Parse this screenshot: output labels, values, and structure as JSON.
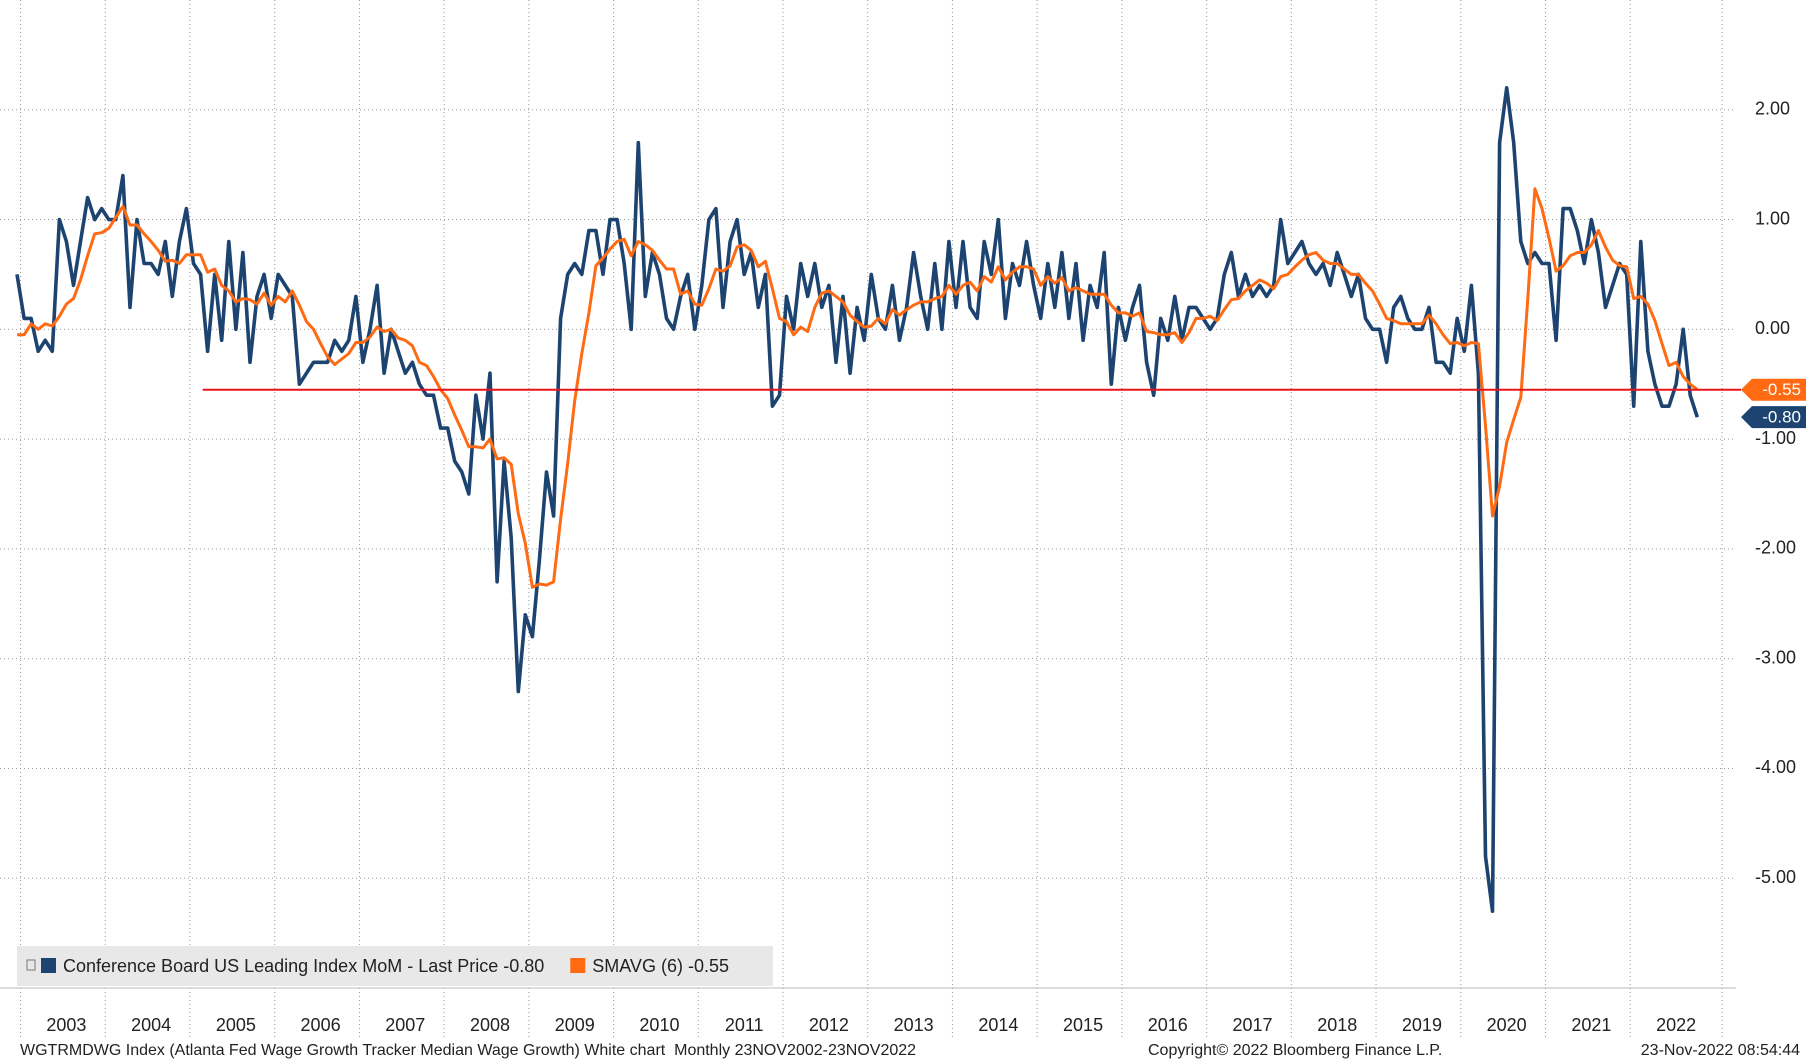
{
  "chart_data": {
    "type": "line",
    "categories": [
      null,
      null,
      null,
      null,
      null,
      null,
      null,
      "2003",
      null,
      null,
      null,
      null,
      null,
      null,
      null,
      null,
      null,
      null,
      null,
      "2004",
      null,
      null,
      null,
      null,
      null,
      null,
      null,
      null,
      null,
      null,
      null,
      "2005",
      null,
      null,
      null,
      null,
      null,
      null,
      null,
      null,
      null,
      null,
      null,
      "2006",
      null,
      null,
      null,
      null,
      null,
      null,
      null,
      null,
      null,
      null,
      null,
      "2007",
      null,
      null,
      null,
      null,
      null,
      null,
      null,
      null,
      null,
      null,
      null,
      "2008",
      null,
      null,
      null,
      null,
      null,
      null,
      null,
      null,
      null,
      null,
      null,
      "2009",
      null,
      null,
      null,
      null,
      null,
      null,
      null,
      null,
      null,
      null,
      null,
      "2010",
      null,
      null,
      null,
      null,
      null,
      null,
      null,
      null,
      null,
      null,
      null,
      "2011",
      null,
      null,
      null,
      null,
      null,
      null,
      null,
      null,
      null,
      null,
      null,
      "2012",
      null,
      null,
      null,
      null,
      null,
      null,
      null,
      null,
      null,
      null,
      null,
      "2013",
      null,
      null,
      null,
      null,
      null,
      null,
      null,
      null,
      null,
      null,
      null,
      "2014",
      null,
      null,
      null,
      null,
      null,
      null,
      null,
      null,
      null,
      null,
      null,
      "2015",
      null,
      null,
      null,
      null,
      null,
      null,
      null,
      null,
      null,
      null,
      null,
      "2016",
      null,
      null,
      null,
      null,
      null,
      null,
      null,
      null,
      null,
      null,
      null,
      "2017",
      null,
      null,
      null,
      null,
      null,
      null,
      null,
      null,
      null,
      null,
      null,
      "2018",
      null,
      null,
      null,
      null,
      null,
      null,
      null,
      null,
      null,
      null,
      null,
      "2019",
      null,
      null,
      null,
      null,
      null,
      null,
      null,
      null,
      null,
      null,
      null,
      "2020",
      null,
      null,
      null,
      null,
      null,
      null,
      null,
      null,
      null,
      null,
      null,
      "2021",
      null,
      null,
      null,
      null,
      null,
      null,
      null,
      null,
      null,
      null,
      null,
      "2022",
      null,
      null,
      null
    ],
    "series": [
      {
        "name": "Conference Board US Leading Index MoM - Last Price -0.80",
        "color": "#1d4470",
        "last_label": "-0.80",
        "values": [
          0.5,
          0.1,
          0.1,
          -0.2,
          -0.1,
          -0.2,
          1.0,
          0.8,
          0.4,
          0.8,
          1.2,
          1.0,
          1.1,
          1.0,
          1.0,
          1.4,
          0.2,
          1.0,
          0.6,
          0.6,
          0.5,
          0.8,
          0.3,
          0.8,
          1.1,
          0.6,
          0.5,
          -0.2,
          0.5,
          -0.1,
          0.8,
          0.0,
          0.7,
          -0.3,
          0.3,
          0.5,
          0.1,
          0.5,
          0.4,
          0.3,
          -0.5,
          -0.4,
          -0.3,
          -0.3,
          -0.3,
          -0.1,
          -0.2,
          -0.1,
          0.3,
          -0.3,
          0.0,
          0.4,
          -0.4,
          0.0,
          -0.2,
          -0.4,
          -0.3,
          -0.5,
          -0.6,
          -0.6,
          -0.9,
          -0.9,
          -1.2,
          -1.3,
          -1.5,
          -0.6,
          -1.0,
          -0.4,
          -2.3,
          -1.2,
          -1.9,
          -3.3,
          -2.6,
          -2.8,
          -2.1,
          -1.3,
          -1.7,
          0.1,
          0.5,
          0.6,
          0.5,
          0.9,
          0.9,
          0.5,
          1.0,
          1.0,
          0.6,
          0.0,
          1.7,
          0.3,
          0.7,
          0.5,
          0.1,
          0.0,
          0.3,
          0.5,
          0.0,
          0.4,
          1.0,
          1.1,
          0.2,
          0.8,
          1.0,
          0.5,
          0.7,
          0.2,
          0.5,
          -0.7,
          -0.6,
          0.3,
          0.0,
          0.6,
          0.3,
          0.6,
          0.2,
          0.4,
          -0.3,
          0.3,
          -0.4,
          0.2,
          -0.1,
          0.5,
          0.1,
          0.0,
          0.4,
          -0.1,
          0.2,
          0.7,
          0.3,
          0.0,
          0.6,
          0.0,
          0.8,
          0.2,
          0.8,
          0.2,
          0.1,
          0.8,
          0.5,
          1.0,
          0.1,
          0.6,
          0.4,
          0.8,
          0.4,
          0.1,
          0.6,
          0.2,
          0.7,
          0.1,
          0.6,
          -0.1,
          0.4,
          0.2,
          0.7,
          -0.5,
          0.2,
          -0.1,
          0.2,
          0.4,
          -0.3,
          -0.6,
          0.1,
          -0.1,
          0.3,
          -0.1,
          0.2,
          0.2,
          0.1,
          0.0,
          0.1,
          0.5,
          0.7,
          0.3,
          0.5,
          0.3,
          0.4,
          0.3,
          0.4,
          1.0,
          0.6,
          0.7,
          0.8,
          0.6,
          0.5,
          0.6,
          0.4,
          0.7,
          0.5,
          0.3,
          0.5,
          0.1,
          0.0,
          0.0,
          -0.3,
          0.2,
          0.3,
          0.1,
          0.0,
          0.0,
          0.2,
          -0.3,
          -0.3,
          -0.4,
          0.1,
          -0.2,
          0.4,
          -0.4,
          -4.8,
          -5.3,
          1.7,
          2.2,
          1.7,
          0.8,
          0.6,
          0.7,
          0.6,
          0.6,
          -0.1,
          1.1,
          1.1,
          0.9,
          0.6,
          1.0,
          0.7,
          0.2,
          0.4,
          0.6,
          0.5,
          -0.7,
          0.8,
          -0.2,
          -0.5,
          -0.7,
          -0.7,
          -0.5,
          0.0,
          -0.6,
          -0.8
        ]
      },
      {
        "name": "SMAVG (6) -0.55",
        "color": "#ff6a13",
        "last_label": "-0.55",
        "values": [
          -0.05,
          -0.05,
          0.05,
          0.0,
          0.05,
          0.03,
          0.12,
          0.23,
          0.28,
          0.45,
          0.67,
          0.87,
          0.88,
          0.92,
          1.02,
          1.12,
          0.95,
          0.95,
          0.87,
          0.8,
          0.72,
          0.62,
          0.63,
          0.6,
          0.68,
          0.68,
          0.68,
          0.52,
          0.55,
          0.4,
          0.35,
          0.25,
          0.28,
          0.27,
          0.23,
          0.33,
          0.22,
          0.3,
          0.25,
          0.35,
          0.22,
          0.07,
          0.0,
          -0.13,
          -0.25,
          -0.32,
          -0.27,
          -0.22,
          -0.12,
          -0.12,
          -0.07,
          0.02,
          -0.02,
          0.0,
          -0.08,
          -0.1,
          -0.15,
          -0.3,
          -0.33,
          -0.43,
          -0.55,
          -0.63,
          -0.78,
          -0.92,
          -1.07,
          -1.07,
          -1.08,
          -1.0,
          -1.18,
          -1.17,
          -1.23,
          -1.68,
          -1.95,
          -2.35,
          -2.32,
          -2.33,
          -2.3,
          -1.73,
          -1.22,
          -0.65,
          -0.22,
          0.15,
          0.58,
          0.65,
          0.73,
          0.8,
          0.82,
          0.67,
          0.8,
          0.77,
          0.72,
          0.63,
          0.55,
          0.55,
          0.32,
          0.35,
          0.23,
          0.22,
          0.37,
          0.55,
          0.53,
          0.58,
          0.75,
          0.77,
          0.72,
          0.57,
          0.62,
          0.37,
          0.1,
          0.07,
          -0.05,
          0.02,
          -0.02,
          0.2,
          0.33,
          0.35,
          0.3,
          0.25,
          0.13,
          0.07,
          0.02,
          0.03,
          0.1,
          0.05,
          0.18,
          0.13,
          0.18,
          0.22,
          0.25,
          0.25,
          0.28,
          0.3,
          0.4,
          0.32,
          0.4,
          0.43,
          0.35,
          0.48,
          0.43,
          0.57,
          0.45,
          0.52,
          0.57,
          0.57,
          0.55,
          0.4,
          0.48,
          0.42,
          0.47,
          0.35,
          0.38,
          0.35,
          0.32,
          0.32,
          0.32,
          0.22,
          0.15,
          0.15,
          0.12,
          0.15,
          -0.02,
          -0.03,
          -0.05,
          -0.05,
          -0.03,
          -0.12,
          -0.03,
          0.1,
          0.1,
          0.12,
          0.08,
          0.18,
          0.27,
          0.28,
          0.35,
          0.4,
          0.45,
          0.42,
          0.37,
          0.48,
          0.5,
          0.57,
          0.63,
          0.68,
          0.7,
          0.63,
          0.6,
          0.6,
          0.55,
          0.5,
          0.5,
          0.42,
          0.35,
          0.23,
          0.1,
          0.08,
          0.05,
          0.05,
          0.05,
          0.05,
          0.13,
          0.05,
          -0.05,
          -0.13,
          -0.12,
          -0.15,
          -0.12,
          -0.13,
          -0.88,
          -1.7,
          -1.43,
          -1.03,
          -0.82,
          -0.62,
          0.28,
          1.28,
          1.1,
          0.83,
          0.53,
          0.58,
          0.67,
          0.7,
          0.7,
          0.77,
          0.9,
          0.75,
          0.63,
          0.58,
          0.57,
          0.28,
          0.3,
          0.23,
          0.08,
          -0.13,
          -0.33,
          -0.3,
          -0.43,
          -0.5,
          -0.55
        ]
      }
    ],
    "ylim": [
      -6,
      3
    ],
    "yticks": [
      {
        "value": -5,
        "label": "-5.00"
      },
      {
        "value": -4,
        "label": "-4.00"
      },
      {
        "value": -3,
        "label": "-3.00"
      },
      {
        "value": -2,
        "label": "-2.00"
      },
      {
        "value": -1,
        "label": "-1.00"
      },
      {
        "value": 0,
        "label": "0.00"
      },
      {
        "value": 1,
        "label": "1.00"
      },
      {
        "value": 2,
        "label": "2.00"
      }
    ],
    "grid": true,
    "reference_line": {
      "value": -0.55,
      "color": "#e8141c"
    },
    "legend": "bottom-left",
    "footer_left": "WGTRMDWG Index (Atlanta Fed Wage Growth Tracker Median Wage Growth) White chart  Monthly 23NOV2002-23NOV2022",
    "footer_center": "Copyright© 2022 Bloomberg Finance L.P.",
    "footer_right": "23-Nov-2022 08:54:44"
  }
}
